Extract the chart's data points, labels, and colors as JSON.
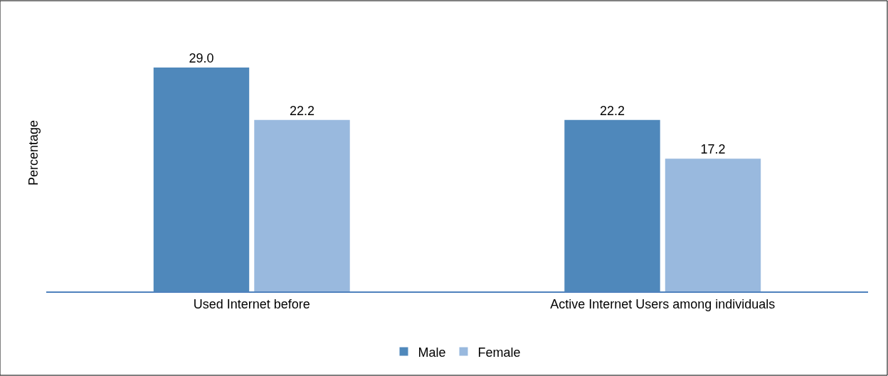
{
  "chart_data": {
    "type": "bar",
    "ylabel": "Percentage",
    "categories": [
      "Used Internet before",
      "Active Internet Users among individuals"
    ],
    "series": [
      {
        "name": "Male",
        "color": "#4f88bb",
        "values": [
          29.0,
          22.2
        ],
        "value_labels": [
          "29.0",
          "22.2"
        ]
      },
      {
        "name": "Female",
        "color": "#99b9de",
        "values": [
          22.2,
          17.2
        ],
        "value_labels": [
          "22.2",
          "17.2"
        ]
      }
    ],
    "tick_labels": "x",
    "legend": "bottom"
  }
}
